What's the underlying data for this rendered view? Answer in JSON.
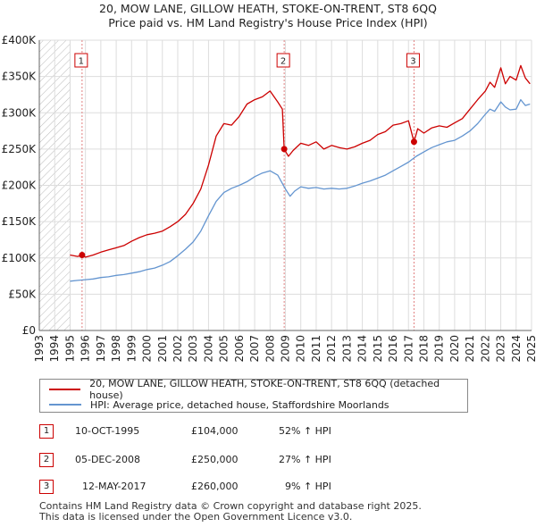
{
  "title_line1": "20, MOW LANE, GILLOW HEATH, STOKE-ON-TRENT, ST8 6QQ",
  "title_line2": "Price paid vs. HM Land Registry's House Price Index (HPI)",
  "colors": {
    "property": "#cc0000",
    "hpi": "#6495d0",
    "hatch": "#bbbbbb",
    "grid": "#dddddd",
    "marker_line": "#e08080"
  },
  "chart_data": {
    "type": "line",
    "title": "Price paid vs. HM Land Registry's House Price Index (HPI)",
    "xlabel": "",
    "ylabel": "",
    "xlim": [
      1993,
      2025
    ],
    "ylim": [
      0,
      400000
    ],
    "x_ticks": [
      "1993",
      "1994",
      "1995",
      "1996",
      "1997",
      "1998",
      "1999",
      "2000",
      "2001",
      "2002",
      "2003",
      "2004",
      "2005",
      "2006",
      "2007",
      "2008",
      "2009",
      "2010",
      "2011",
      "2012",
      "2013",
      "2014",
      "2015",
      "2016",
      "2017",
      "2018",
      "2019",
      "2020",
      "2021",
      "2022",
      "2023",
      "2024",
      "2025"
    ],
    "y_ticks": [
      {
        "value": 0,
        "label": "£0"
      },
      {
        "value": 50000,
        "label": "£50K"
      },
      {
        "value": 100000,
        "label": "£100K"
      },
      {
        "value": 150000,
        "label": "£150K"
      },
      {
        "value": 200000,
        "label": "£200K"
      },
      {
        "value": 250000,
        "label": "£250K"
      },
      {
        "value": 300000,
        "label": "£300K"
      },
      {
        "value": 350000,
        "label": "£350K"
      },
      {
        "value": 400000,
        "label": "£400K"
      }
    ],
    "hatched_region": [
      1993,
      1995.0
    ],
    "grid": true,
    "series": [
      {
        "name": "20, MOW LANE, GILLOW HEATH, STOKE-ON-TRENT, ST8 6QQ (detached house)",
        "key": "property",
        "x": [
          1995.0,
          1995.5,
          1995.78,
          1996.0,
          1996.5,
          1997.0,
          1997.5,
          1998.0,
          1998.5,
          1999.0,
          1999.5,
          2000.0,
          2000.5,
          2001.0,
          2001.5,
          2002.0,
          2002.5,
          2003.0,
          2003.5,
          2004.0,
          2004.5,
          2005.0,
          2005.5,
          2006.0,
          2006.5,
          2007.0,
          2007.5,
          2008.0,
          2008.5,
          2008.8,
          2008.92,
          2009.2,
          2009.5,
          2010.0,
          2010.5,
          2011.0,
          2011.5,
          2012.0,
          2012.5,
          2013.0,
          2013.5,
          2014.0,
          2014.5,
          2015.0,
          2015.5,
          2016.0,
          2016.5,
          2017.0,
          2017.36,
          2017.6,
          2018.0,
          2018.5,
          2019.0,
          2019.5,
          2020.0,
          2020.5,
          2021.0,
          2021.5,
          2022.0,
          2022.3,
          2022.6,
          2023.0,
          2023.3,
          2023.6,
          2024.0,
          2024.3,
          2024.6,
          2024.9
        ],
        "y": [
          104000,
          102000,
          104000,
          101000,
          104000,
          108000,
          111000,
          114000,
          117000,
          123000,
          128000,
          132000,
          134000,
          137000,
          143000,
          150000,
          160000,
          175000,
          195000,
          228000,
          268000,
          285000,
          283000,
          295000,
          312000,
          318000,
          322000,
          330000,
          315000,
          305000,
          250000,
          240000,
          248000,
          258000,
          255000,
          260000,
          250000,
          255000,
          252000,
          250000,
          253000,
          258000,
          262000,
          270000,
          274000,
          283000,
          285000,
          289000,
          260000,
          278000,
          272000,
          279000,
          282000,
          280000,
          286000,
          292000,
          305000,
          318000,
          330000,
          342000,
          335000,
          362000,
          340000,
          350000,
          345000,
          365000,
          348000,
          340000
        ]
      },
      {
        "name": "HPI: Average price, detached house, Staffordshire Moorlands",
        "key": "hpi",
        "x": [
          1995.0,
          1995.5,
          1996.0,
          1996.5,
          1997.0,
          1997.5,
          1998.0,
          1998.5,
          1999.0,
          1999.5,
          2000.0,
          2000.5,
          2001.0,
          2001.5,
          2002.0,
          2002.5,
          2003.0,
          2003.5,
          2004.0,
          2004.5,
          2005.0,
          2005.5,
          2006.0,
          2006.5,
          2007.0,
          2007.5,
          2008.0,
          2008.5,
          2009.0,
          2009.3,
          2009.6,
          2010.0,
          2010.5,
          2011.0,
          2011.5,
          2012.0,
          2012.5,
          2013.0,
          2013.5,
          2014.0,
          2014.5,
          2015.0,
          2015.5,
          2016.0,
          2016.5,
          2017.0,
          2017.5,
          2018.0,
          2018.5,
          2019.0,
          2019.5,
          2020.0,
          2020.5,
          2021.0,
          2021.5,
          2022.0,
          2022.3,
          2022.6,
          2023.0,
          2023.3,
          2023.6,
          2024.0,
          2024.3,
          2024.6,
          2024.9
        ],
        "y": [
          68000,
          69000,
          70000,
          71000,
          73000,
          74000,
          76000,
          77000,
          79000,
          81000,
          84000,
          86000,
          90000,
          95000,
          103000,
          112000,
          122000,
          137000,
          158000,
          178000,
          190000,
          196000,
          200000,
          205000,
          212000,
          217000,
          220000,
          214000,
          195000,
          185000,
          192000,
          198000,
          196000,
          197000,
          195000,
          196000,
          195000,
          196000,
          199000,
          203000,
          206000,
          210000,
          214000,
          220000,
          226000,
          232000,
          240000,
          246000,
          252000,
          256000,
          260000,
          262000,
          268000,
          275000,
          285000,
          298000,
          305000,
          302000,
          315000,
          308000,
          304000,
          305000,
          318000,
          310000,
          312000
        ]
      }
    ],
    "transactions": [
      {
        "n": "1",
        "x": 1995.78,
        "y": 104000,
        "date": "10-OCT-1995",
        "price": "£104,000",
        "delta": "52% ↑ HPI"
      },
      {
        "n": "2",
        "x": 2008.92,
        "y": 250000,
        "date": "05-DEC-2008",
        "price": "£250,000",
        "delta": "27% ↑ HPI"
      },
      {
        "n": "3",
        "x": 2017.36,
        "y": 260000,
        "date": "12-MAY-2017",
        "price": "£260,000",
        "delta": "9% ↑ HPI"
      }
    ]
  },
  "legend": {
    "property_label": "20, MOW LANE, GILLOW HEATH, STOKE-ON-TRENT, ST8 6QQ (detached house)",
    "hpi_label": "HPI: Average price, detached house, Staffordshire Moorlands"
  },
  "footer": {
    "line1": "Contains HM Land Registry data © Crown copyright and database right 2025.",
    "line2": "This data is licensed under the Open Government Licence v3.0."
  }
}
